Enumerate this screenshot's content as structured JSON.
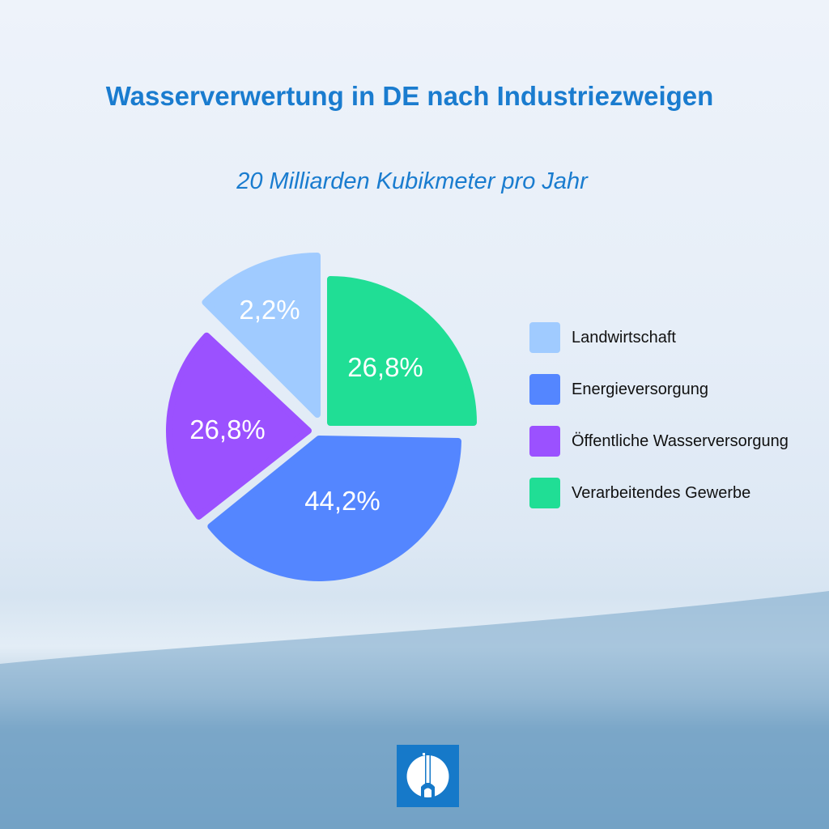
{
  "chart_data": {
    "type": "pie",
    "title": "Wasserverwertung in DE nach Industriezweigen",
    "subtitle": "20 Milliarden Kubikmeter pro Jahr",
    "legend_position": "right",
    "slices": [
      {
        "name": "Landwirtschaft",
        "value": 2.2,
        "label": "2,2%",
        "color": "#a0cbff"
      },
      {
        "name": "Energieversorgung",
        "value": 44.2,
        "label": "44,2%",
        "color": "#5486ff"
      },
      {
        "name": "Öffentliche Wasserversorgung",
        "value": 26.8,
        "label": "26,8%",
        "color": "#9b51ff"
      },
      {
        "name": "Verarbeitendes Gewerbe",
        "value": 26.8,
        "label": "26,8%",
        "color": "#20de95"
      }
    ]
  },
  "logo": {
    "icon": "brand-logo-icon"
  }
}
